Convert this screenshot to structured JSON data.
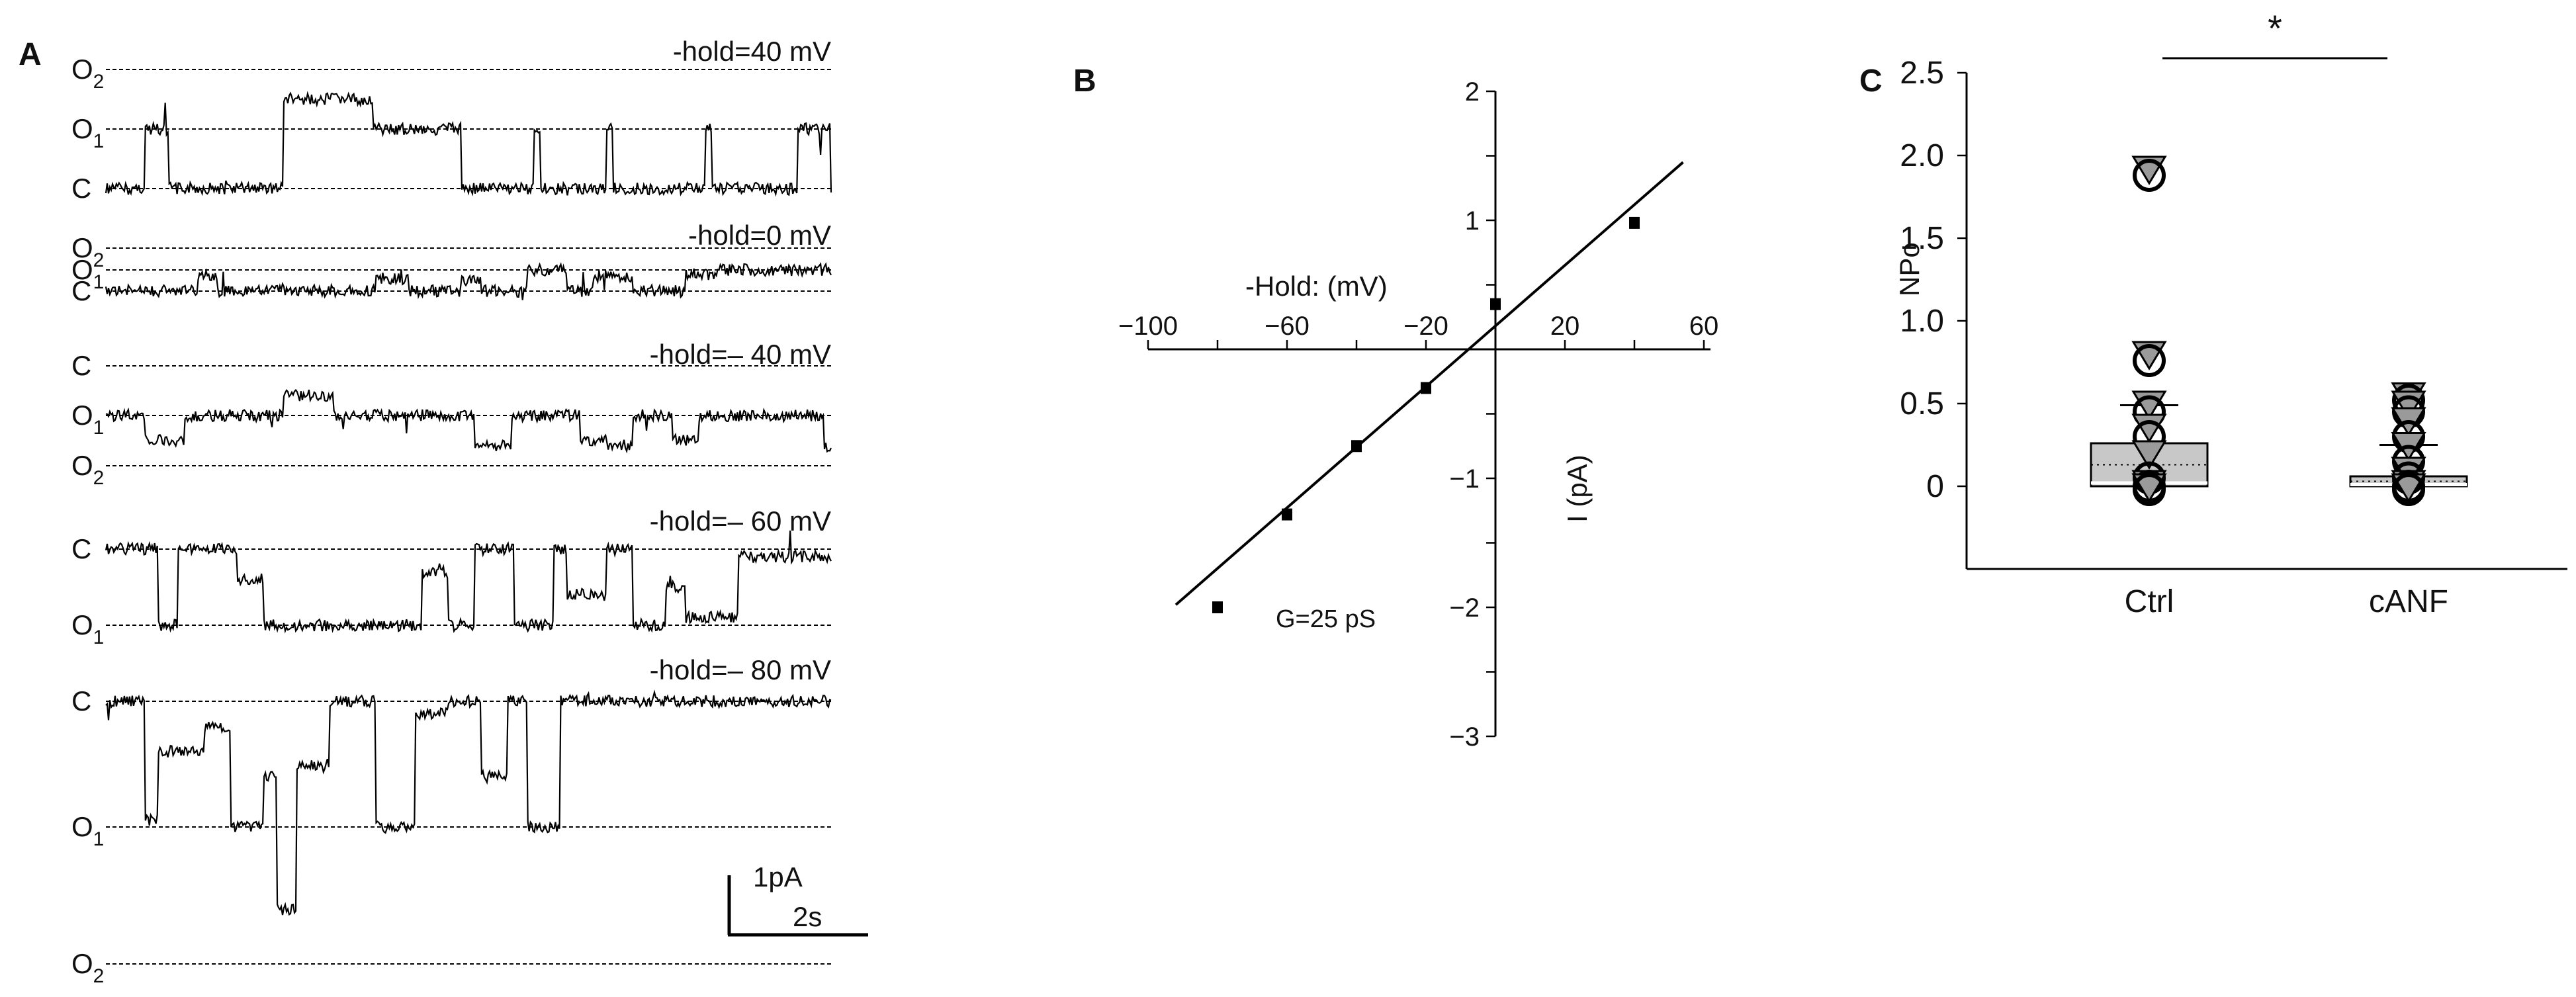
{
  "panels": {
    "a": {
      "letter": "A",
      "traces": [
        {
          "hold_label": "-hold=40 mV",
          "levels": [
            {
              "label": "O",
              "sub": "2"
            },
            {
              "label": "O",
              "sub": "1"
            },
            {
              "label": "C",
              "sub": ""
            }
          ]
        },
        {
          "hold_label": "-hold=0 mV",
          "levels": [
            {
              "label": "O",
              "sub": "2"
            },
            {
              "label": "O",
              "sub": "1"
            },
            {
              "label": "C",
              "sub": ""
            }
          ]
        },
        {
          "hold_label": "-hold=– 40 mV",
          "levels": [
            {
              "label": "C",
              "sub": ""
            },
            {
              "label": "O",
              "sub": "1"
            },
            {
              "label": "O",
              "sub": "2"
            }
          ]
        },
        {
          "hold_label": "-hold=– 60 mV",
          "levels": [
            {
              "label": "C",
              "sub": ""
            },
            {
              "label": "O",
              "sub": "1"
            }
          ]
        },
        {
          "hold_label": "-hold=– 80 mV",
          "levels": [
            {
              "label": "C",
              "sub": ""
            },
            {
              "label": "O",
              "sub": "1"
            },
            {
              "label": "O",
              "sub": "2"
            }
          ]
        }
      ],
      "scale_bar": {
        "current": "1pA",
        "time": "2s"
      }
    },
    "b": {
      "letter": "B"
    },
    "c": {
      "letter": "C"
    }
  },
  "chart_data": [
    {
      "type": "scatter",
      "panel": "B",
      "xlabel": "-Hold: (mV)",
      "ylabel": "I (pA)",
      "xlim": [
        -100,
        60
      ],
      "ylim": [
        -3,
        2
      ],
      "xticks": [
        -100,
        -60,
        -20,
        20,
        60
      ],
      "xtick_labels": [
        "−100",
        "−60",
        "−20",
        "20",
        "60"
      ],
      "yticks": [
        2,
        1,
        -1,
        -2,
        -3
      ],
      "ytick_labels": [
        "2",
        "1",
        "−1",
        "−2",
        "−3"
      ],
      "points": [
        {
          "x": -80,
          "y": -2.0
        },
        {
          "x": -60,
          "y": -1.28
        },
        {
          "x": -40,
          "y": -0.75
        },
        {
          "x": -20,
          "y": -0.3
        },
        {
          "x": 0,
          "y": 0.35
        },
        {
          "x": 40,
          "y": 0.98
        }
      ],
      "fit_line": {
        "x": [
          -92,
          54
        ],
        "y": [
          -1.98,
          1.45
        ]
      },
      "annotation": "G=25 pS"
    },
    {
      "type": "box",
      "panel": "C",
      "ylabel": "NPo",
      "ylim": [
        -0.5,
        2.5
      ],
      "yticks": [
        0,
        0.5,
        1.0,
        1.5,
        2.0,
        2.5
      ],
      "ytick_labels": [
        "0",
        "0.5",
        "1.0",
        "1.5",
        "2.0",
        "2.5"
      ],
      "categories": [
        "Ctrl",
        "cANF"
      ],
      "boxes": [
        {
          "name": "Ctrl",
          "q1": 0.0,
          "q3": 0.26,
          "median": 0.02,
          "mean": 0.13,
          "mean_plus_sd": 0.49
        },
        {
          "name": "cANF",
          "q1": 0.0,
          "q3": 0.06,
          "median": 0.01,
          "mean": 0.03,
          "mean_plus_sd": 0.25
        }
      ],
      "points": [
        {
          "group": "Ctrl",
          "values": [
            1.92,
            1.88,
            0.8,
            0.76,
            0.5,
            0.45,
            0.36,
            0.3,
            0.2,
            0.05,
            0.02,
            0.0,
            0.0,
            -0.02
          ]
        },
        {
          "group": "cANF",
          "values": [
            0.55,
            0.52,
            0.5,
            0.45,
            0.4,
            0.3,
            0.25,
            0.15,
            0.1,
            0.05,
            0.02,
            0.0,
            0.0,
            -0.02
          ]
        }
      ],
      "significance": "*"
    }
  ]
}
